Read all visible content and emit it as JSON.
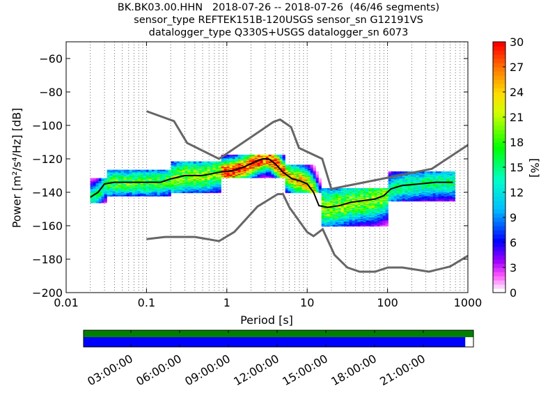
{
  "title_lines": [
    "BK.BK03.00.HHN   2018-07-26 -- 2018-07-26  (46/46 segments)",
    "sensor_type REFTEK151B-120USGS sensor_sn G12191VS",
    "datalogger_type Q330S+USGS datalogger_sn 6073"
  ],
  "chart_data": {
    "type": "heatmap",
    "description_type": "probabilistic power spectral density",
    "xlabel": "Period [s]",
    "ylabel": "Power [m²/s⁴/Hz] [dB]",
    "xscale": "log",
    "xlim": [
      0.01,
      1000
    ],
    "ylim": [
      -200,
      -50
    ],
    "xticks": [
      0.01,
      0.1,
      1,
      10,
      100,
      1000
    ],
    "xtick_labels": [
      "0.01",
      "0.1",
      "1",
      "10",
      "100",
      "1000"
    ],
    "yticks": [
      -200,
      -180,
      -160,
      -140,
      -120,
      -100,
      -80,
      -60
    ],
    "ytick_labels": [
      "−200",
      "−180",
      "−160",
      "−140",
      "−120",
      "−100",
      "−80",
      "−60"
    ],
    "grid": "dotted vertical lines at period grid",
    "colorbar": {
      "label": "[%]",
      "range": [
        0,
        30
      ],
      "ticks": [
        0,
        3,
        6,
        9,
        12,
        15,
        18,
        21,
        24,
        27,
        30
      ],
      "colormap": "pqlx (white-magenta-blue-cyan-green-yellow-orange-red)"
    },
    "noise_models": {
      "color": "#666666",
      "NHNM": [
        [
          0.1,
          -91.5
        ],
        [
          0.22,
          -97.4
        ],
        [
          0.32,
          -110.5
        ],
        [
          0.8,
          -120
        ],
        [
          3.8,
          -97.9
        ],
        [
          4.6,
          -96.5
        ],
        [
          6.3,
          -101
        ],
        [
          7.9,
          -113.5
        ],
        [
          15.4,
          -120
        ],
        [
          20,
          -138
        ],
        [
          354.8,
          -126
        ],
        [
          10000,
          -80
        ]
      ],
      "NLNM": [
        [
          0.1,
          -168
        ],
        [
          0.17,
          -166.7
        ],
        [
          0.4,
          -166.7
        ],
        [
          0.8,
          -169.2
        ],
        [
          1.24,
          -163.7
        ],
        [
          2.4,
          -148.6
        ],
        [
          4.3,
          -141.1
        ],
        [
          5,
          -141.1
        ],
        [
          6,
          -149
        ],
        [
          10,
          -163.8
        ],
        [
          12,
          -166.2
        ],
        [
          15.6,
          -162.1
        ],
        [
          21.9,
          -177.5
        ],
        [
          31.6,
          -185
        ],
        [
          45,
          -187.5
        ],
        [
          70,
          -187.5
        ],
        [
          101,
          -185
        ],
        [
          154,
          -185
        ],
        [
          328,
          -187.5
        ],
        [
          600,
          -184.4
        ],
        [
          1000,
          -178
        ]
      ]
    },
    "mode_line": [
      [
        0.02,
        -143
      ],
      [
        0.025,
        -140
      ],
      [
        0.03,
        -135
      ],
      [
        0.04,
        -134
      ],
      [
        0.06,
        -134
      ],
      [
        0.1,
        -134
      ],
      [
        0.15,
        -134
      ],
      [
        0.2,
        -132
      ],
      [
        0.3,
        -130
      ],
      [
        0.5,
        -130
      ],
      [
        0.8,
        -128
      ],
      [
        1.2,
        -127
      ],
      [
        1.6,
        -125
      ],
      [
        2.2,
        -122
      ],
      [
        2.8,
        -120
      ],
      [
        3.3,
        -120
      ],
      [
        4,
        -123
      ],
      [
        5,
        -128
      ],
      [
        6.5,
        -132
      ],
      [
        8,
        -133
      ],
      [
        10,
        -135
      ],
      [
        12,
        -140
      ],
      [
        14,
        -148
      ],
      [
        18,
        -149
      ],
      [
        25,
        -148
      ],
      [
        35,
        -146
      ],
      [
        50,
        -145
      ],
      [
        70,
        -144
      ],
      [
        90,
        -142
      ],
      [
        110,
        -138
      ],
      [
        150,
        -136
      ],
      [
        250,
        -135
      ],
      [
        400,
        -134
      ],
      [
        650,
        -134
      ]
    ],
    "density": [
      {
        "x_range": [
          0.02,
          0.03
        ],
        "y_range": [
          -146,
          -132
        ],
        "peak_pct": 15
      },
      {
        "x_range": [
          0.03,
          0.2
        ],
        "y_range": [
          -142,
          -127
        ],
        "peak_pct": 18
      },
      {
        "x_range": [
          0.2,
          0.8
        ],
        "y_range": [
          -140,
          -122
        ],
        "peak_pct": 20
      },
      {
        "x_range": [
          0.8,
          5
        ],
        "y_range": [
          -131,
          -118
        ],
        "peak_pct": 30
      },
      {
        "x_range": [
          5,
          15
        ],
        "y_range": [
          -140,
          -124
        ],
        "peak_pct": 24
      },
      {
        "x_range": [
          15,
          100
        ],
        "y_range": [
          -160,
          -138
        ],
        "peak_pct": 20
      },
      {
        "x_range": [
          100,
          650
        ],
        "y_range": [
          -145,
          -128
        ],
        "peak_pct": 15
      }
    ],
    "timeline": {
      "tick_labels": [
        "03:00:00",
        "06:00:00",
        "09:00:00",
        "12:00:00",
        "15:00:00",
        "18:00:00",
        "21:00:00"
      ],
      "data_coverage_fraction": 0.979,
      "gap_coverage_fraction": 1.0
    }
  }
}
